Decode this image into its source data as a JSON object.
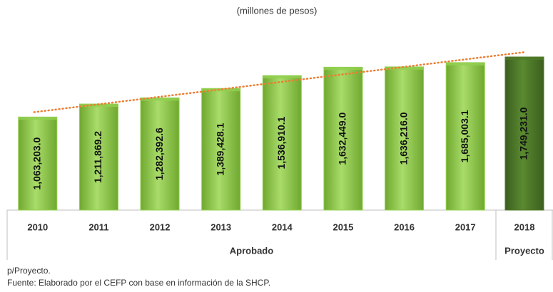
{
  "chart_data": {
    "type": "bar",
    "subtitle": "(millones de pesos)",
    "categories": [
      "2010",
      "2011",
      "2012",
      "2013",
      "2014",
      "2015",
      "2016",
      "2017",
      "2018"
    ],
    "series": [
      {
        "name": "Aprobado",
        "color": "#92d050",
        "values": [
          1063203.0,
          1211869.2,
          1282392.6,
          1389428.1,
          1536910.1,
          1632449.0,
          1636216.0,
          1685003.1,
          null
        ],
        "value_labels": [
          "1,063,203.0",
          "1,211,869.2",
          "1,282,392.6",
          "1,389,428.1",
          "1,536,910.1",
          "1,632,449.0",
          "1,636,216.0",
          "1,685,003.1",
          null
        ]
      },
      {
        "name": "Proyecto",
        "color": "#4f7a28",
        "values": [
          null,
          null,
          null,
          null,
          null,
          null,
          null,
          null,
          1749231.0
        ],
        "value_labels": [
          null,
          null,
          null,
          null,
          null,
          null,
          null,
          null,
          "1,749,231.0"
        ]
      }
    ],
    "trendline": {
      "color": "#ed7d31"
    },
    "notes": [
      "p/Proyecto.",
      "Fuente: Elaborado por el CEFP con base en información de la SHCP."
    ]
  }
}
